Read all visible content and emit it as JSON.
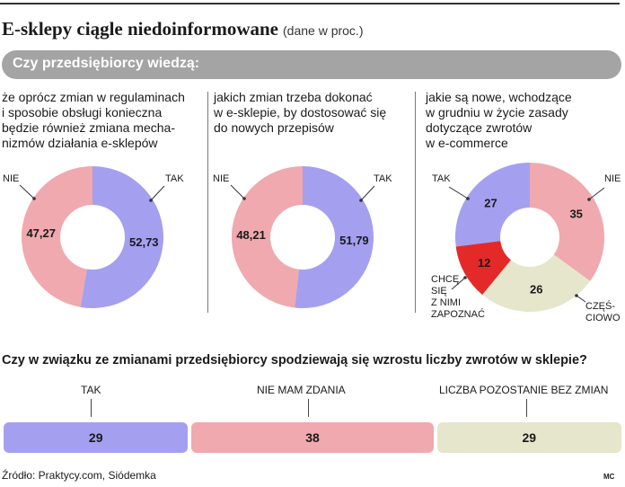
{
  "header": {
    "title": "E-sklepy ciągle niedoinformowane",
    "unit": "(dane w proc.)",
    "question_bar": "Czy przedsiębiorcy wiedzą:"
  },
  "chart_data": [
    {
      "type": "pie",
      "donut": true,
      "question_lines": [
        "że oprócz zmian w regulaminach",
        "i sposobie obsługi konieczna",
        "będzie również zmiana mecha-",
        "nizmów działania e-sklepów"
      ],
      "slices": [
        {
          "label": "TAK",
          "value": 52.73,
          "display": "52,73",
          "color": "#a59ff0"
        },
        {
          "label": "NIE",
          "value": 47.27,
          "display": "47,27",
          "color": "#f0a9ae"
        }
      ]
    },
    {
      "type": "pie",
      "donut": true,
      "question_lines": [
        "jakich zmian trzeba dokonać",
        "w e-sklepie, by dostosować się",
        "do nowych przepisów"
      ],
      "slices": [
        {
          "label": "TAK",
          "value": 51.79,
          "display": "51,79",
          "color": "#a59ff0"
        },
        {
          "label": "NIE",
          "value": 48.21,
          "display": "48,21",
          "color": "#f0a9ae"
        }
      ]
    },
    {
      "type": "pie",
      "donut": true,
      "question_lines": [
        "jakie są nowe, wchodzące",
        "w grudniu w życie zasady",
        "dotyczące zwrotów",
        "w e-commerce"
      ],
      "slices": [
        {
          "label": "NIE",
          "value": 35,
          "display": "35",
          "color": "#f0a9ae"
        },
        {
          "label": "CZĘŚ-|CIOWO",
          "value": 26,
          "display": "26",
          "color": "#e6e6cc"
        },
        {
          "label": "CHCĘ|SIĘ|Z NIMI|ZAPOZNAĆ",
          "value": 12,
          "display": "12",
          "color": "#e42a28"
        },
        {
          "label": "TAK",
          "value": 27,
          "display": "27",
          "color": "#a59ff0"
        }
      ]
    },
    {
      "type": "bar",
      "stacked": true,
      "title": "Czy w związku ze zmianami przedsiębiorcy spodziewają się wzrostu liczby zwrotów w sklepie?",
      "categories": [
        "TAK",
        "NIE MAM ZDANIA",
        "LICZBA POZOSTANIE BEZ ZMIAN"
      ],
      "values": [
        29,
        38,
        29
      ],
      "colors": [
        "#a59ff0",
        "#f0a9ae",
        "#e6e6cc"
      ]
    }
  ],
  "footer": {
    "source": "Źródło: Praktycy.com, Siódemka",
    "credit": "MC"
  }
}
